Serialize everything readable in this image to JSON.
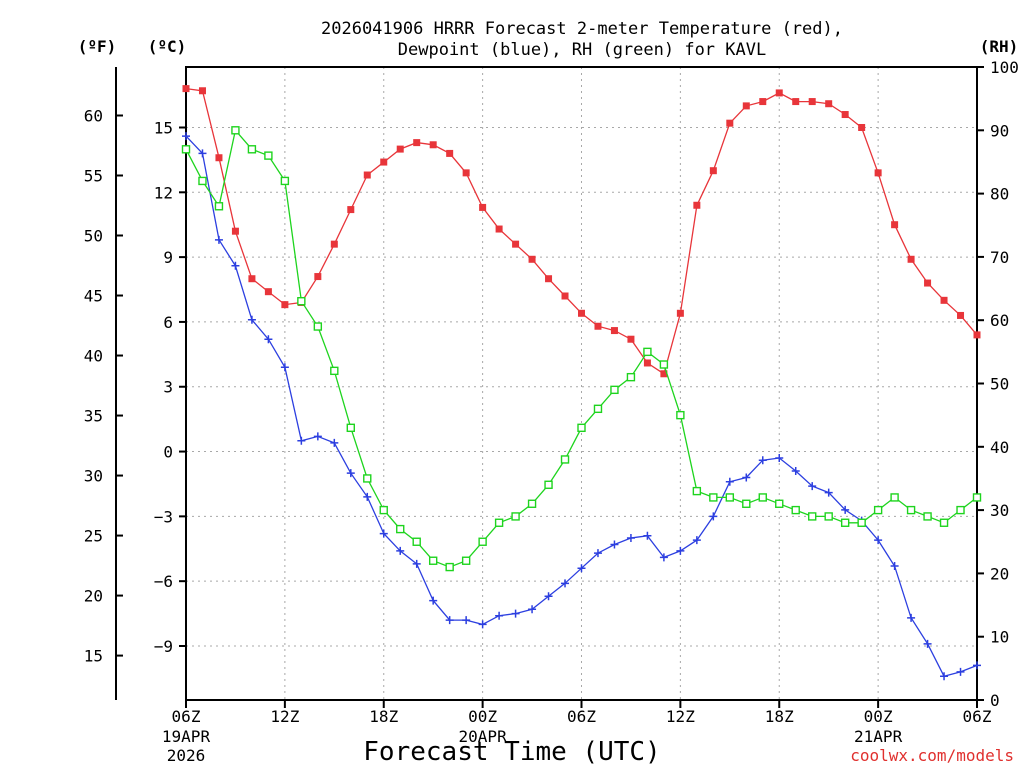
{
  "chart_data": {
    "type": "line",
    "title_line1": "2026041906 HRRR Forecast 2-meter Temperature (red),",
    "title_line2": "Dewpoint (blue), RH (green) for KAVL",
    "xlabel": "Forecast Time (UTC)",
    "credit": "coolwx.com/models",
    "left_unit_f": "(ºF)",
    "left_unit_c": "(ºC)",
    "right_unit": "(RH)",
    "x_range": [
      0,
      48
    ],
    "celsius_range": [
      -11.5,
      17.8
    ],
    "rh_range": [
      0,
      100
    ],
    "x_ticks": [
      {
        "x": 0,
        "label": "06Z",
        "sub1": "19APR",
        "sub2": "2026"
      },
      {
        "x": 6,
        "label": "12Z"
      },
      {
        "x": 12,
        "label": "18Z"
      },
      {
        "x": 18,
        "label": "00Z",
        "sub1": "20APR"
      },
      {
        "x": 24,
        "label": "06Z"
      },
      {
        "x": 30,
        "label": "12Z"
      },
      {
        "x": 36,
        "label": "18Z"
      },
      {
        "x": 42,
        "label": "00Z",
        "sub1": "21APR"
      },
      {
        "x": 48,
        "label": "06Z"
      }
    ],
    "celsius_ticks": [
      -9,
      -6,
      -3,
      0,
      3,
      6,
      9,
      12,
      15
    ],
    "fahrenheit_ticks": [
      15,
      20,
      25,
      30,
      35,
      40,
      45,
      50,
      55,
      60
    ],
    "rh_ticks": [
      0,
      10,
      20,
      30,
      40,
      50,
      60,
      70,
      80,
      90,
      100
    ],
    "grid": true,
    "series": [
      {
        "name": "2-meter Temperature",
        "axis": "celsius",
        "color": "#e8353a",
        "marker": "filled-square",
        "x": [
          0,
          1,
          2,
          3,
          4,
          5,
          6,
          7,
          8,
          9,
          10,
          11,
          12,
          13,
          14,
          15,
          16,
          17,
          18,
          19,
          20,
          21,
          22,
          23,
          24,
          25,
          26,
          27,
          28,
          29,
          30,
          31,
          32,
          33,
          34,
          35,
          36,
          37,
          38,
          39,
          40,
          41,
          42,
          43,
          44,
          45,
          46,
          47,
          48
        ],
        "values": [
          16.8,
          16.7,
          13.6,
          10.2,
          8.0,
          7.4,
          6.8,
          6.9,
          8.1,
          9.6,
          11.2,
          12.8,
          13.4,
          14.0,
          14.3,
          14.2,
          13.8,
          12.9,
          11.3,
          10.3,
          9.6,
          8.9,
          8.0,
          7.2,
          6.4,
          5.8,
          5.6,
          5.2,
          4.1,
          3.6,
          6.4,
          11.4,
          13.0,
          15.2,
          16.0,
          16.2,
          16.6,
          16.2,
          16.2,
          16.1,
          15.6,
          15.0,
          12.9,
          10.5,
          8.9,
          7.8,
          7.0,
          6.3,
          5.4
        ]
      },
      {
        "name": "Dewpoint",
        "axis": "celsius",
        "color": "#2c3fe0",
        "marker": "plus",
        "x": [
          0,
          1,
          2,
          3,
          4,
          5,
          6,
          7,
          8,
          9,
          10,
          11,
          12,
          13,
          14,
          15,
          16,
          17,
          18,
          19,
          20,
          21,
          22,
          23,
          24,
          25,
          26,
          27,
          28,
          29,
          30,
          31,
          32,
          33,
          34,
          35,
          36,
          37,
          38,
          39,
          40,
          41,
          42,
          43,
          44,
          45,
          46,
          47,
          48
        ],
        "values": [
          14.6,
          13.8,
          9.8,
          8.6,
          6.1,
          5.2,
          3.9,
          0.5,
          0.7,
          0.4,
          -1.0,
          -2.1,
          -3.8,
          -4.6,
          -5.2,
          -6.9,
          -7.8,
          -7.8,
          -8.0,
          -7.6,
          -7.5,
          -7.3,
          -6.7,
          -6.1,
          -5.4,
          -4.7,
          -4.3,
          -4.0,
          -3.9,
          -4.9,
          -4.6,
          -4.1,
          -3.0,
          -1.4,
          -1.2,
          -0.4,
          -0.3,
          -0.9,
          -1.6,
          -1.9,
          -2.7,
          -3.2,
          -4.1,
          -5.3,
          -7.7,
          -8.9,
          -10.4,
          -10.2,
          -9.9
        ]
      },
      {
        "name": "RH",
        "axis": "rh",
        "color": "#1ed41e",
        "marker": "open-square",
        "x": [
          0,
          1,
          2,
          3,
          4,
          5,
          6,
          7,
          8,
          9,
          10,
          11,
          12,
          13,
          14,
          15,
          16,
          17,
          18,
          19,
          20,
          21,
          22,
          23,
          24,
          25,
          26,
          27,
          28,
          29,
          30,
          31,
          32,
          33,
          34,
          35,
          36,
          37,
          38,
          39,
          40,
          41,
          42,
          43,
          44,
          45,
          46,
          47,
          48
        ],
        "values": [
          87,
          82,
          78,
          90,
          87,
          86,
          82,
          63,
          59,
          52,
          43,
          35,
          30,
          27,
          25,
          22,
          21,
          22,
          25,
          28,
          29,
          31,
          34,
          38,
          43,
          46,
          49,
          51,
          55,
          53,
          45,
          33,
          32,
          32,
          31,
          32,
          31,
          30,
          29,
          29,
          28,
          28,
          30,
          32,
          30,
          29,
          28,
          30,
          32
        ]
      }
    ]
  }
}
